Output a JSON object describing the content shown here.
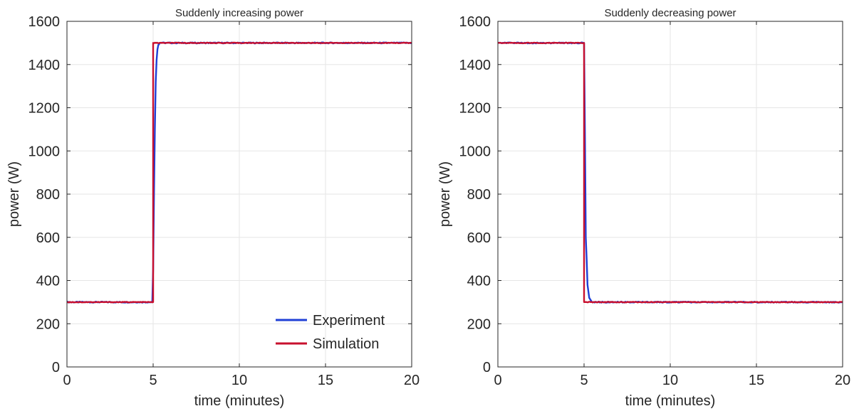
{
  "figure": {
    "colors": {
      "experiment": "#1f3fd6",
      "simulation": "#c8102e",
      "grid": "#e6e6e6",
      "axis": "#262626"
    }
  },
  "chart_data": [
    {
      "type": "line",
      "title": "Suddenly increasing power",
      "xlabel": "time (minutes)",
      "ylabel": "power (W)",
      "xlim": [
        0,
        20
      ],
      "ylim": [
        0,
        1600
      ],
      "xticks": [
        0,
        5,
        10,
        15,
        20
      ],
      "yticks": [
        0,
        200,
        400,
        600,
        800,
        1000,
        1200,
        1400,
        1600
      ],
      "grid": true,
      "legend": {
        "position": "bottom-right",
        "entries": [
          "Experiment",
          "Simulation"
        ]
      },
      "series": [
        {
          "name": "Experiment",
          "color": "#1f3fd6",
          "x": [
            0,
            4.95,
            5.0,
            5.05,
            5.1,
            5.15,
            5.2,
            5.25,
            5.3,
            5.4,
            5.6,
            20
          ],
          "y": [
            300,
            300,
            450,
            800,
            1100,
            1320,
            1420,
            1470,
            1490,
            1500,
            1500,
            1500
          ]
        },
        {
          "name": "Simulation",
          "color": "#c8102e",
          "x": [
            0,
            5.0,
            5.0,
            20
          ],
          "y": [
            300,
            300,
            1500,
            1500
          ]
        }
      ]
    },
    {
      "type": "line",
      "title": "Suddenly decreasing power",
      "xlabel": "time (minutes)",
      "ylabel": "power (W)",
      "xlim": [
        0,
        20
      ],
      "ylim": [
        0,
        1600
      ],
      "xticks": [
        0,
        5,
        10,
        15,
        20
      ],
      "yticks": [
        0,
        200,
        400,
        600,
        800,
        1000,
        1200,
        1400,
        1600
      ],
      "grid": true,
      "series": [
        {
          "name": "Experiment",
          "color": "#1f3fd6",
          "x": [
            0,
            4.95,
            5.0,
            5.05,
            5.1,
            5.15,
            5.2,
            5.3,
            5.45,
            20
          ],
          "y": [
            1500,
            1500,
            1500,
            1080,
            600,
            500,
            380,
            320,
            300,
            300
          ]
        },
        {
          "name": "Simulation",
          "color": "#c8102e",
          "x": [
            0,
            5.0,
            5.0,
            20
          ],
          "y": [
            1500,
            1500,
            300,
            300
          ]
        }
      ]
    }
  ]
}
